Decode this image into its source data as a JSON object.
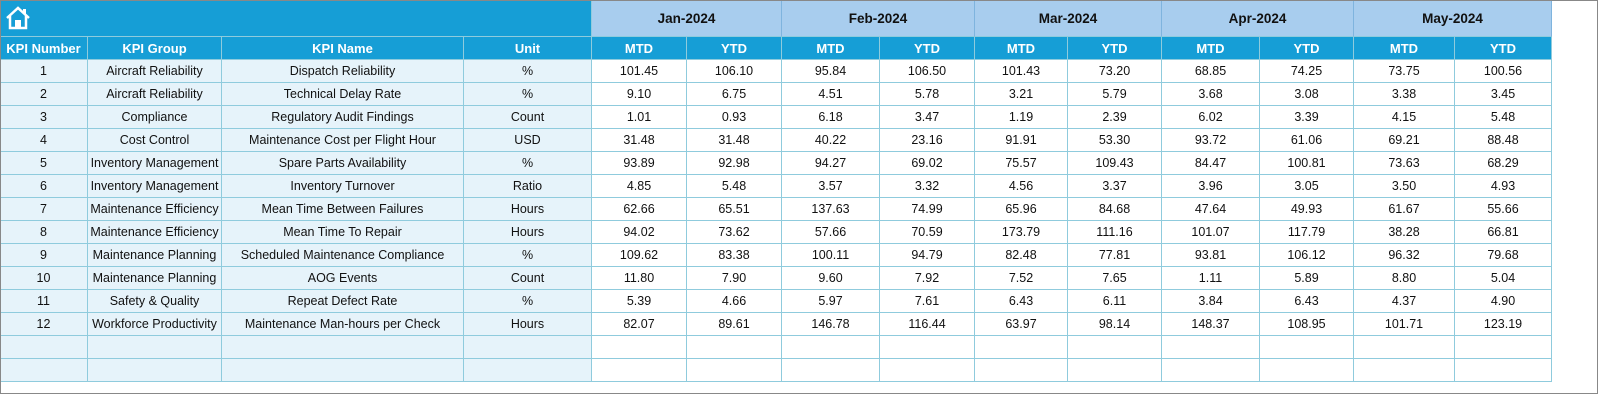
{
  "header": {
    "columns": [
      "KPI Number",
      "KPI Group",
      "KPI Name",
      "Unit"
    ],
    "months": [
      "Jan-2024",
      "Feb-2024",
      "Mar-2024",
      "Apr-2024",
      "May-2024"
    ],
    "periods": [
      "MTD",
      "YTD"
    ]
  },
  "table": {
    "rows": [
      [
        "1",
        "Aircraft Reliability",
        "Dispatch Reliability",
        "%",
        "101.45",
        "106.10",
        "95.84",
        "106.50",
        "101.43",
        "73.20",
        "68.85",
        "74.25",
        "73.75",
        "100.56"
      ],
      [
        "2",
        "Aircraft Reliability",
        "Technical Delay Rate",
        "%",
        "9.10",
        "6.75",
        "4.51",
        "5.78",
        "3.21",
        "5.79",
        "3.68",
        "3.08",
        "3.38",
        "3.45"
      ],
      [
        "3",
        "Compliance",
        "Regulatory Audit Findings",
        "Count",
        "1.01",
        "0.93",
        "6.18",
        "3.47",
        "1.19",
        "2.39",
        "6.02",
        "3.39",
        "4.15",
        "5.48"
      ],
      [
        "4",
        "Cost Control",
        "Maintenance Cost per Flight Hour",
        "USD",
        "31.48",
        "31.48",
        "40.22",
        "23.16",
        "91.91",
        "53.30",
        "93.72",
        "61.06",
        "69.21",
        "88.48"
      ],
      [
        "5",
        "Inventory Management",
        "Spare Parts Availability",
        "%",
        "93.89",
        "92.98",
        "94.27",
        "69.02",
        "75.57",
        "109.43",
        "84.47",
        "100.81",
        "73.63",
        "68.29"
      ],
      [
        "6",
        "Inventory Management",
        "Inventory Turnover",
        "Ratio",
        "4.85",
        "5.48",
        "3.57",
        "3.32",
        "4.56",
        "3.37",
        "3.96",
        "3.05",
        "3.50",
        "4.93"
      ],
      [
        "7",
        "Maintenance Efficiency",
        "Mean Time Between Failures",
        "Hours",
        "62.66",
        "65.51",
        "137.63",
        "74.99",
        "65.96",
        "84.68",
        "47.64",
        "49.93",
        "61.67",
        "55.66"
      ],
      [
        "8",
        "Maintenance Efficiency",
        "Mean Time To Repair",
        "Hours",
        "94.02",
        "73.62",
        "57.66",
        "70.59",
        "173.79",
        "111.16",
        "101.07",
        "117.79",
        "38.28",
        "66.81"
      ],
      [
        "9",
        "Maintenance Planning",
        "Scheduled Maintenance Compliance",
        "%",
        "109.62",
        "83.38",
        "100.11",
        "94.79",
        "82.48",
        "77.81",
        "93.81",
        "106.12",
        "96.32",
        "79.68"
      ],
      [
        "10",
        "Maintenance Planning",
        "AOG Events",
        "Count",
        "11.80",
        "7.90",
        "9.60",
        "7.92",
        "7.52",
        "7.65",
        "1.11",
        "5.89",
        "8.80",
        "5.04"
      ],
      [
        "11",
        "Safety & Quality",
        "Repeat Defect Rate",
        "%",
        "5.39",
        "4.66",
        "5.97",
        "7.61",
        "6.43",
        "6.11",
        "3.84",
        "6.43",
        "4.37",
        "4.90"
      ],
      [
        "12",
        "Workforce Productivity",
        "Maintenance Man-hours per Check",
        "Hours",
        "82.07",
        "89.61",
        "146.78",
        "116.44",
        "63.97",
        "98.14",
        "148.37",
        "108.95",
        "101.71",
        "123.19"
      ]
    ]
  }
}
